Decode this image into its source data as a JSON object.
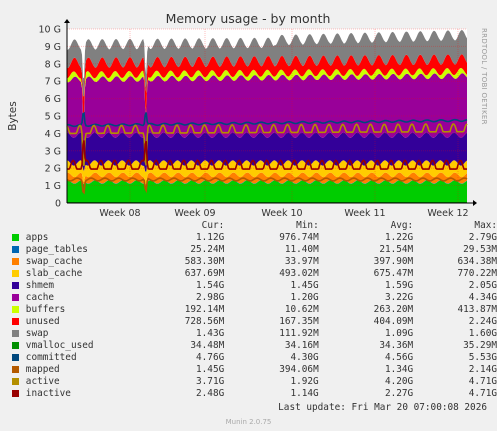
{
  "title": "Memory usage - by month",
  "ylabel": "Bytes",
  "watermark": "RRDTOOL / TOBI OETIKER",
  "headers": {
    "cur": "Cur:",
    "min": "Min:",
    "avg": "Avg:",
    "max": "Max:"
  },
  "legend": [
    {
      "name": "apps",
      "color": "#00cc00",
      "cur": "1.12G",
      "min": "976.74M",
      "avg": "1.22G",
      "max": "2.79G"
    },
    {
      "name": "page_tables",
      "color": "#0066b3",
      "cur": "25.24M",
      "min": "11.40M",
      "avg": "21.54M",
      "max": "29.53M"
    },
    {
      "name": "swap_cache",
      "color": "#ff8000",
      "cur": "583.30M",
      "min": "33.97M",
      "avg": "397.90M",
      "max": "634.38M"
    },
    {
      "name": "slab_cache",
      "color": "#ffcc00",
      "cur": "637.69M",
      "min": "493.02M",
      "avg": "675.47M",
      "max": "770.22M"
    },
    {
      "name": "shmem",
      "color": "#330099",
      "cur": "1.54G",
      "min": "1.45G",
      "avg": "1.59G",
      "max": "2.05G"
    },
    {
      "name": "cache",
      "color": "#990099",
      "cur": "2.98G",
      "min": "1.20G",
      "avg": "3.22G",
      "max": "4.34G"
    },
    {
      "name": "buffers",
      "color": "#ccff00",
      "cur": "192.14M",
      "min": "10.62M",
      "avg": "263.20M",
      "max": "413.87M"
    },
    {
      "name": "unused",
      "color": "#ff0000",
      "cur": "728.56M",
      "min": "167.35M",
      "avg": "404.09M",
      "max": "2.24G"
    },
    {
      "name": "swap",
      "color": "#808080",
      "cur": "1.43G",
      "min": "111.92M",
      "avg": "1.09G",
      "max": "1.60G"
    },
    {
      "name": "vmalloc_used",
      "color": "#008f00",
      "cur": "34.48M",
      "min": "34.16M",
      "avg": "34.36M",
      "max": "35.29M"
    },
    {
      "name": "committed",
      "color": "#00487d",
      "cur": "4.76G",
      "min": "4.30G",
      "avg": "4.56G",
      "max": "5.53G"
    },
    {
      "name": "mapped",
      "color": "#b35a00",
      "cur": "1.45G",
      "min": "394.06M",
      "avg": "1.34G",
      "max": "2.14G"
    },
    {
      "name": "active",
      "color": "#b38f00",
      "cur": "3.71G",
      "min": "1.92G",
      "avg": "4.20G",
      "max": "4.71G"
    },
    {
      "name": "inactive",
      "color": "#990000",
      "cur": "2.48G",
      "min": "1.14G",
      "avg": "2.27G",
      "max": "4.71G"
    }
  ],
  "footer": "Last update: Fri Mar 20 07:00:08 2026",
  "munin": "Munin 2.0.75",
  "chart_data": {
    "type": "area",
    "title": "Memory usage - by month",
    "ylabel": "Bytes",
    "y_ticks": [
      "0",
      "1 G",
      "2 G",
      "3 G",
      "4 G",
      "5 G",
      "6 G",
      "7 G",
      "8 G",
      "9 G",
      "10 G"
    ],
    "ylim": [
      0,
      10
    ],
    "y_unit": "GB",
    "x_ticks": [
      "Week 08",
      "Week 09",
      "Week 10",
      "Week 11",
      "Week 12"
    ],
    "grid": true,
    "stack_order": [
      "apps",
      "page_tables",
      "swap_cache",
      "slab_cache",
      "shmem",
      "cache",
      "buffers",
      "unused",
      "swap"
    ],
    "line_series": [
      "vmalloc_used",
      "committed",
      "mapped",
      "active",
      "inactive"
    ],
    "approx_levels_gb": {
      "apps": 1.2,
      "page_tables": 0.02,
      "swap_cache": 0.4,
      "slab_cache": 0.68,
      "shmem": 1.6,
      "cache": 3.2,
      "buffers": 0.26,
      "unused": 0.4,
      "swap": 1.1,
      "vmalloc_used": 0.03,
      "committed": 4.6,
      "mapped": 1.35,
      "active": 4.2,
      "inactive": 2.3
    }
  }
}
